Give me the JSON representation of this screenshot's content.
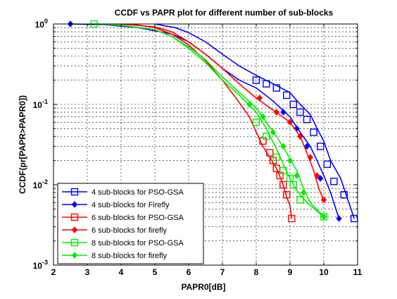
{
  "chart_data": {
    "type": "line",
    "title": "CCDF vs PAPR plot for different number of sub-blocks",
    "xlabel": "PAPR0[dB]",
    "ylabel": "CCDF(pr[PAPR>PAPR0])",
    "xlim": [
      2,
      11
    ],
    "ylim": [
      0.001,
      1
    ],
    "yscale": "log",
    "grid": true,
    "legend_position": "bottom-left",
    "x_ticks": [
      "2",
      "3",
      "4",
      "5",
      "6",
      "7",
      "8",
      "9",
      "10",
      "11"
    ],
    "y_ticks": [
      {
        "base": "10",
        "exp": "0",
        "value": 1
      },
      {
        "base": "10",
        "exp": "-1",
        "value": 0.1
      },
      {
        "base": "10",
        "exp": "-2",
        "value": 0.01
      },
      {
        "base": "10",
        "exp": "-3",
        "value": 0.001
      }
    ],
    "series": [
      {
        "name": "4 sub-blocks for PSO-GSA",
        "color": "#0000ff",
        "marker": "square",
        "x": [
          5.0,
          5.6,
          6.0,
          6.5,
          7.0,
          7.5,
          8.0,
          8.5,
          9.0,
          9.3,
          9.6,
          9.8,
          10.0,
          10.2,
          10.5,
          10.9
        ],
        "y": [
          1.0,
          0.9,
          0.78,
          0.6,
          0.42,
          0.3,
          0.23,
          0.18,
          0.14,
          0.1,
          0.075,
          0.05,
          0.035,
          0.02,
          0.012,
          0.0038
        ],
        "markers_x": [
          8.0,
          8.3,
          8.6,
          8.9,
          9.1,
          9.3,
          9.5,
          9.7,
          9.9,
          10.1,
          10.3,
          10.6,
          10.9
        ],
        "markers_y": [
          0.2,
          0.18,
          0.16,
          0.13,
          0.1,
          0.08,
          0.065,
          0.045,
          0.03,
          0.018,
          0.011,
          0.0075,
          0.0038
        ]
      },
      {
        "name": "4 sub-blocks for Firefly",
        "color": "#0000ff",
        "marker": "diamond",
        "x": [
          2.5,
          3.5,
          4.5,
          5.5,
          6.0,
          6.5,
          7.0,
          7.5,
          8.0,
          8.5,
          9.0,
          9.3,
          9.6,
          9.8,
          10.0,
          10.2,
          10.45
        ],
        "y": [
          1.0,
          0.98,
          0.9,
          0.75,
          0.6,
          0.42,
          0.28,
          0.2,
          0.16,
          0.11,
          0.07,
          0.045,
          0.03,
          0.02,
          0.013,
          0.008,
          0.0038
        ],
        "markers_x": [
          2.5,
          8.8,
          9.2,
          9.5,
          9.9,
          10.45
        ],
        "markers_y": [
          1.0,
          0.08,
          0.05,
          0.03,
          0.012,
          0.0038
        ]
      },
      {
        "name": "6 sub-blocks for PSO-GSA",
        "color": "#ff0000",
        "marker": "square",
        "x": [
          4.3,
          5.0,
          5.5,
          6.0,
          6.5,
          7.0,
          7.4,
          7.8,
          8.0,
          8.2,
          8.4,
          8.6,
          8.8,
          8.9,
          9.0,
          9.05
        ],
        "y": [
          1.0,
          0.9,
          0.75,
          0.55,
          0.35,
          0.2,
          0.12,
          0.07,
          0.045,
          0.03,
          0.022,
          0.016,
          0.01,
          0.007,
          0.0055,
          0.0038
        ],
        "markers_x": [
          8.2,
          8.4,
          8.5,
          8.6,
          8.7,
          8.8,
          8.9,
          9.05
        ],
        "markers_y": [
          0.035,
          0.025,
          0.02,
          0.016,
          0.013,
          0.01,
          0.0075,
          0.0038
        ]
      },
      {
        "name": "6 sub-blocks for firefly",
        "color": "#ff0000",
        "marker": "diamond",
        "x": [
          4.0,
          5.0,
          5.5,
          6.0,
          6.5,
          7.0,
          7.5,
          8.0,
          8.5,
          9.0,
          9.3,
          9.5,
          9.7,
          9.85,
          10.0
        ],
        "y": [
          1.0,
          0.92,
          0.8,
          0.6,
          0.42,
          0.28,
          0.18,
          0.12,
          0.085,
          0.06,
          0.04,
          0.025,
          0.015,
          0.009,
          0.0065
        ],
        "markers_x": [
          8.1,
          8.6,
          9.0,
          9.3,
          9.6,
          9.8,
          10.0
        ],
        "markers_y": [
          0.12,
          0.08,
          0.06,
          0.04,
          0.022,
          0.013,
          0.0065
        ]
      },
      {
        "name": "8 sub-blocks for PSO-GSA",
        "color": "#00ee00",
        "marker": "square",
        "x": [
          3.2,
          4.0,
          5.0,
          5.5,
          6.0,
          6.5,
          7.0,
          7.5,
          8.0,
          8.3,
          8.6,
          8.8,
          9.0,
          9.2,
          9.5,
          10.0
        ],
        "y": [
          1.0,
          0.97,
          0.85,
          0.7,
          0.5,
          0.33,
          0.2,
          0.13,
          0.08,
          0.05,
          0.028,
          0.018,
          0.012,
          0.0085,
          0.006,
          0.004
        ],
        "markers_x": [
          3.2,
          8.0,
          8.3,
          8.6,
          8.8,
          9.0,
          9.1,
          9.3,
          10.0
        ],
        "markers_y": [
          1.0,
          0.06,
          0.04,
          0.022,
          0.015,
          0.012,
          0.01,
          0.0065,
          0.004
        ]
      },
      {
        "name": "8 sub-blocks for firefly",
        "color": "#00ee00",
        "marker": "diamond",
        "x": [
          3.3,
          4.0,
          5.0,
          5.5,
          6.0,
          6.5,
          7.0,
          7.5,
          8.0,
          8.3,
          8.6,
          8.9,
          9.2,
          9.4,
          9.6,
          10.0
        ],
        "y": [
          1.0,
          0.96,
          0.85,
          0.7,
          0.52,
          0.36,
          0.22,
          0.14,
          0.09,
          0.06,
          0.04,
          0.025,
          0.015,
          0.009,
          0.006,
          0.004
        ],
        "markers_x": [
          7.8,
          8.2,
          8.5,
          8.8,
          9.0,
          9.2,
          9.4,
          10.0
        ],
        "markers_y": [
          0.1,
          0.07,
          0.045,
          0.03,
          0.02,
          0.013,
          0.008,
          0.004
        ]
      }
    ]
  }
}
